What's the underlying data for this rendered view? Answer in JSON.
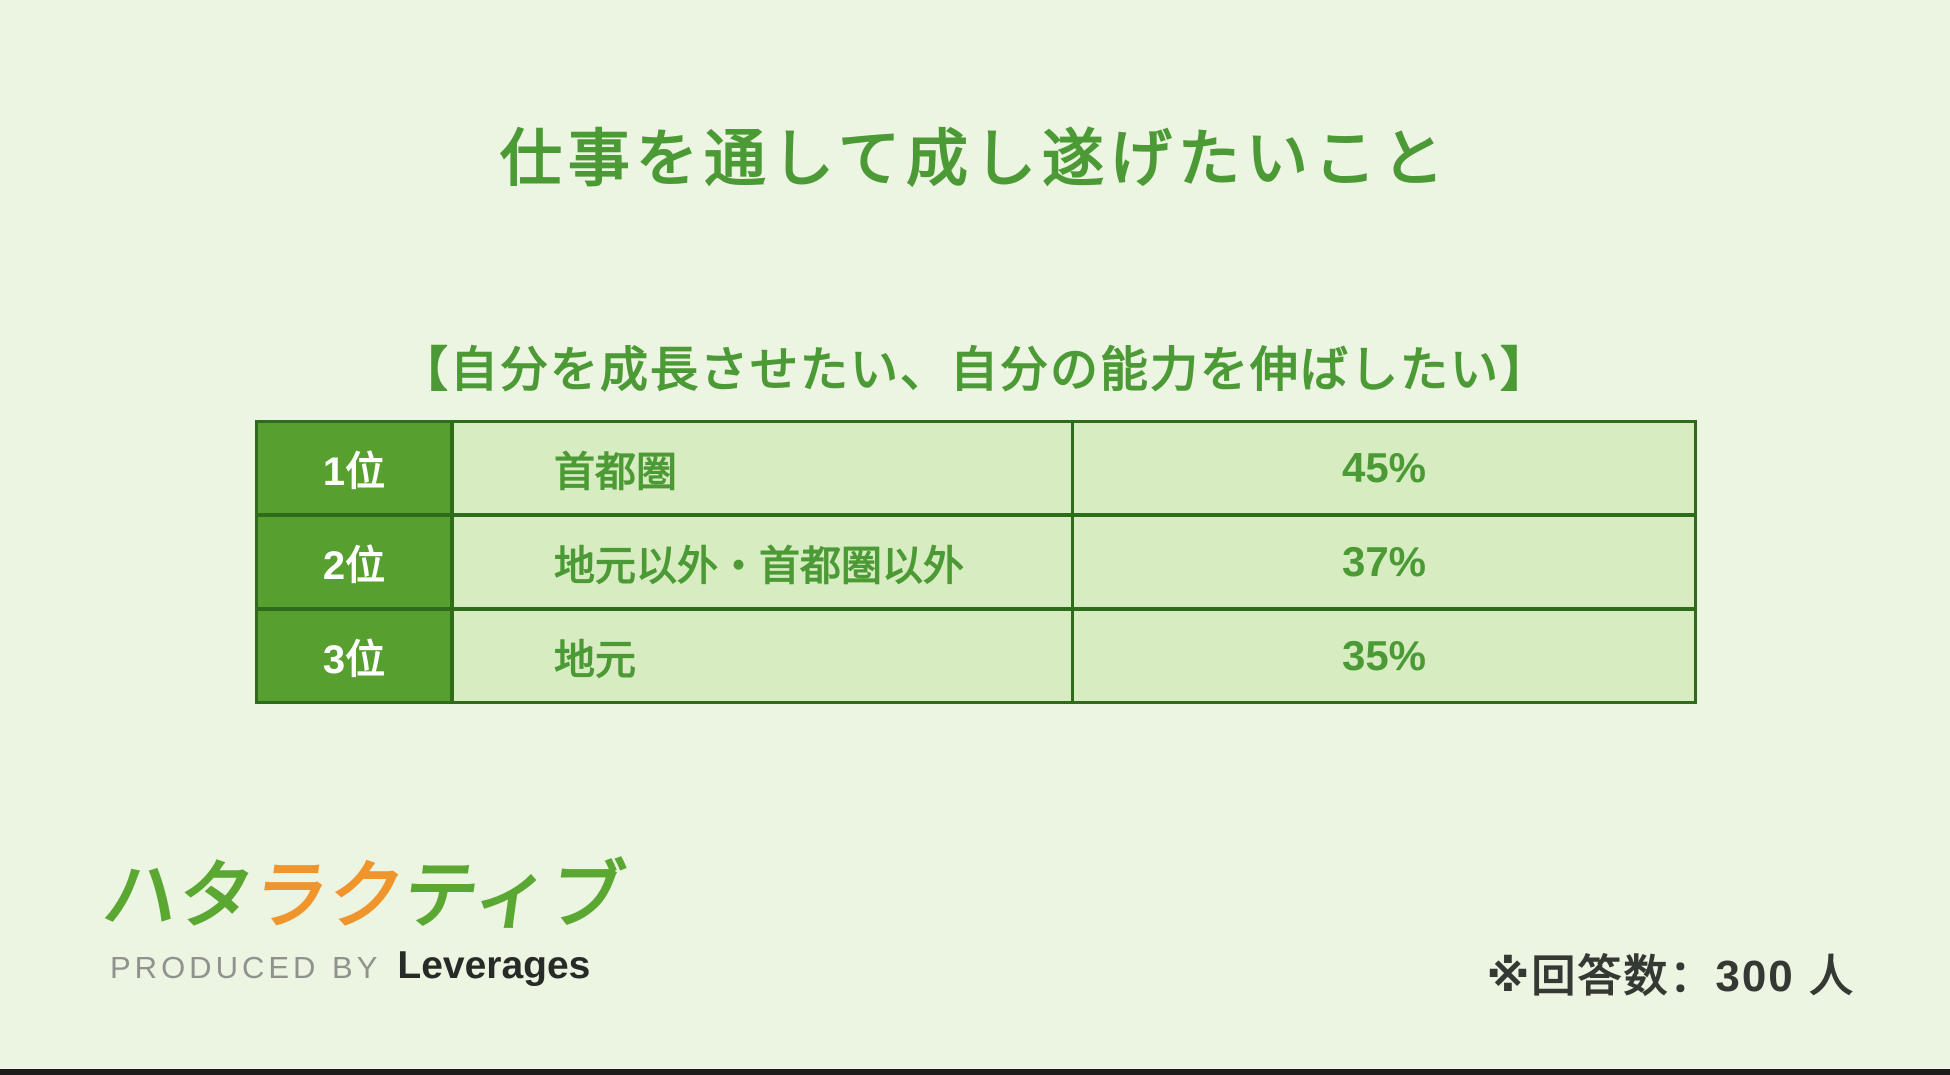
{
  "chart_data": {
    "type": "table",
    "title": "仕事を通して成し遂げたいこと",
    "subtitle": "【自分を成長させたい、自分の能力を伸ばしたい】",
    "rows": [
      {
        "rank": "1位",
        "label": "首都圏",
        "value": "45%",
        "value_numeric": 45
      },
      {
        "rank": "2位",
        "label": "地元以外・首都圏以外",
        "value": "37%",
        "value_numeric": 37
      },
      {
        "rank": "3位",
        "label": "地元",
        "value": "35%",
        "value_numeric": 35
      }
    ],
    "unit": "%",
    "respondents": 300
  },
  "footer": {
    "logo_full_text": "ハタラクティブ",
    "logo_segments": [
      {
        "text": "ハタ",
        "color": "#5aa832"
      },
      {
        "text": "ラク",
        "color": "#f0942c"
      },
      {
        "text": "ティブ",
        "color": "#5aa832"
      }
    ],
    "produced_by": "PRODUCED BY",
    "brand": "Leverages",
    "note": "※回答数：300 人"
  },
  "colors": {
    "background": "#ecf4e2",
    "title_green": "#4c9a35",
    "rank_cell_green": "#57a02f",
    "data_cell_light_green": "#d7ecc1",
    "table_border_green": "#2e6b1a",
    "rank_text_white": "#ffffff",
    "logo_green": "#5aa832",
    "logo_orange": "#f0942c",
    "produced_by_gray": "#8e938e",
    "note_text_dark": "#343a33",
    "bottom_edge_dark": "#1c1c1c"
  }
}
